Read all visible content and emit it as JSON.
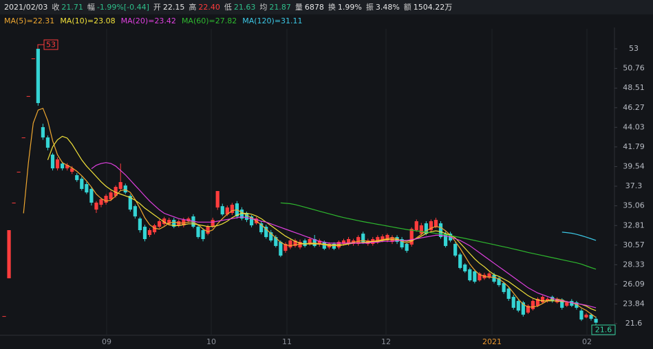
{
  "header": {
    "date": "2021/02/03",
    "items": [
      {
        "label": "收",
        "value": "21.71",
        "color": "#2ebf8a"
      },
      {
        "label": "幅",
        "value": "-1.99%[-0.44]",
        "color": "#2ebf8a"
      },
      {
        "label": "开",
        "value": "22.15",
        "color": "#e6e6e6"
      },
      {
        "label": "高",
        "value": "22.40",
        "color": "#ff3b3b"
      },
      {
        "label": "低",
        "value": "21.63",
        "color": "#2ebf8a"
      },
      {
        "label": "均",
        "value": "21.87",
        "color": "#2ebf8a"
      },
      {
        "label": "量",
        "value": "6878",
        "color": "#e6e6e6"
      },
      {
        "label": "换",
        "value": "1.99%",
        "color": "#e6e6e6"
      },
      {
        "label": "振",
        "value": "3.48%",
        "color": "#e6e6e6"
      },
      {
        "label": "额",
        "value": "1504.22万",
        "color": "#e6e6e6"
      }
    ]
  },
  "chart_data": {
    "type": "candlestick",
    "up_color": "#ff3d3d",
    "down_color": "#35d4d4",
    "ylim": [
      20.27,
      55.28
    ],
    "yticks": [
      53,
      50.76,
      48.51,
      46.27,
      44.03,
      41.79,
      39.54,
      37.3,
      35.06,
      32.81,
      30.57,
      28.33,
      26.09,
      23.84,
      21.6
    ],
    "x_labels": [
      {
        "label": "09",
        "color": "#8e939c"
      },
      {
        "label": "10",
        "color": "#8e939c"
      },
      {
        "label": "11",
        "color": "#8e939c"
      },
      {
        "label": "12",
        "color": "#8e939c"
      },
      {
        "label": "2021",
        "color": "#e8962e"
      },
      {
        "label": "02",
        "color": "#8e939c"
      }
    ],
    "annotations": [
      {
        "value": 53,
        "label": "53",
        "color": "#ff3d3d"
      },
      {
        "value": 21.6,
        "label": "21.6",
        "color": "#35d4a0"
      }
    ],
    "open": [
      22.46,
      26.78,
      35.42,
      38.95,
      42.87,
      47.6,
      51.9,
      53,
      44.05,
      42.87,
      40.91,
      39.34,
      39.89,
      39.34,
      38.95,
      38.56,
      38.16,
      37.54,
      36.99,
      34.63,
      35.18,
      35.42,
      35.81,
      36.2,
      36.99,
      37.38,
      36.2,
      35.02,
      33.61,
      32.67,
      31.73,
      32.04,
      32.67,
      32.98,
      32.98,
      33.45,
      32.83,
      32.83,
      33.3,
      33.85,
      32.67,
      32.28,
      31.88,
      32.67,
      34.87,
      35.02,
      34.08,
      34.24,
      35.34,
      34.63,
      34.24,
      33.85,
      33.06,
      33.06,
      32.67,
      32.04,
      31.49,
      30.94,
      29.92,
      30.31,
      30.47,
      30.31,
      31.1,
      30.71,
      31.26,
      30.63,
      30.94,
      30.31,
      30.71,
      30.31,
      30.71,
      30.71,
      30.71,
      30.71,
      31.88,
      30.71,
      30.71,
      30.94,
      31.1,
      31.1,
      30.94,
      31.49,
      31.26,
      30.71,
      30.63,
      32.28,
      31.88,
      33.06,
      32.28,
      32.67,
      33.06,
      31.88,
      31.88,
      30.71,
      29.5,
      28.35,
      27.8,
      27.57,
      26.55,
      26.78,
      26.86,
      27.17,
      26.78,
      26.23,
      25.6,
      24.66,
      24.19,
      24.03,
      22.86,
      23.25,
      23.64,
      24.03,
      24.19,
      24.66,
      24.03,
      24.35,
      23.64,
      24.19,
      24.03,
      23.09,
      22.31,
      22.62,
      22.15
    ],
    "close": [
      22.46,
      32.28,
      35.42,
      38.95,
      42.87,
      47.6,
      51.9,
      46.8,
      42.87,
      41.7,
      39.34,
      40.36,
      39.34,
      39.73,
      39.34,
      38,
      36.99,
      36.59,
      35.42,
      35.42,
      35.81,
      36.2,
      36.59,
      37.22,
      37.77,
      36.59,
      34.63,
      33.85,
      32.28,
      31.26,
      32.28,
      32.83,
      33.3,
      33.61,
      33.45,
      32.67,
      33.3,
      33.45,
      33.61,
      32.67,
      31.49,
      31.26,
      32.67,
      33.45,
      36.75,
      34.08,
      34.87,
      35.18,
      33.85,
      33.61,
      33.45,
      32.83,
      33.61,
      32.04,
      31.49,
      31.1,
      30.47,
      29.37,
      30.71,
      31.1,
      31.1,
      30.94,
      30.47,
      31.26,
      30.47,
      31.1,
      30.16,
      30.71,
      30.16,
      30.94,
      31.1,
      31.26,
      31.1,
      31.49,
      30.94,
      31.1,
      31.26,
      31.49,
      31.57,
      31.73,
      31.49,
      30.94,
      30.31,
      29.92,
      32.43,
      33.3,
      32.83,
      31.88,
      33.3,
      33.45,
      31.49,
      30.47,
      31.1,
      29.37,
      27.96,
      27.57,
      26.55,
      26.39,
      27.33,
      27.17,
      27.33,
      26.39,
      26,
      25.21,
      24.43,
      23.41,
      23.09,
      22.62,
      23.64,
      24.19,
      24.43,
      24.66,
      24.43,
      24.19,
      24.43,
      23.41,
      24.03,
      23.64,
      23.41,
      22.07,
      22.62,
      22.15,
      21.71
    ],
    "high": [
      22.46,
      32.28,
      35.42,
      38.95,
      42.87,
      47.6,
      51.9,
      53,
      44.44,
      43.1,
      41.1,
      40.6,
      40.1,
      39.95,
      39.6,
      38.8,
      38.4,
      37.8,
      37.2,
      35.6,
      36,
      36.4,
      36.8,
      37.4,
      39.89,
      37.6,
      36.4,
      35.2,
      33.8,
      32.9,
      32.5,
      33,
      33.5,
      33.8,
      33.7,
      33.7,
      33.5,
      33.7,
      33.8,
      34.1,
      32.9,
      32.5,
      32.9,
      33.7,
      36.75,
      35.3,
      35.1,
      35.4,
      35.6,
      34.9,
      34.4,
      34,
      33.8,
      33.3,
      32.9,
      32.3,
      31.7,
      31.1,
      30.9,
      31.3,
      31.3,
      31.2,
      31.3,
      31.5,
      31.73,
      31.3,
      31.1,
      30.9,
      30.9,
      31.1,
      31.3,
      31.5,
      31.3,
      31.7,
      32.1,
      31.3,
      31.5,
      31.7,
      31.8,
      31.9,
      31.7,
      31.7,
      31.5,
      30.9,
      32.6,
      33.5,
      33.1,
      33.3,
      33.5,
      33.7,
      33.3,
      32.1,
      32.1,
      30.9,
      29.7,
      28.5,
      28,
      27.8,
      27.5,
      27.4,
      27.5,
      27.4,
      27,
      26.4,
      25.8,
      24.9,
      24.4,
      24.2,
      23.8,
      24.4,
      24.6,
      24.8,
      24.6,
      24.8,
      24.6,
      24.5,
      24.2,
      24.4,
      24.2,
      23.3,
      22.8,
      22.8,
      22.4
    ],
    "low": [
      22.46,
      26.78,
      35.42,
      38.95,
      42.87,
      47.6,
      51.9,
      46.5,
      42.6,
      41.4,
      39.1,
      39.1,
      39.1,
      39.1,
      38.7,
      37.8,
      36.8,
      36.4,
      35.1,
      34.24,
      34.9,
      35.2,
      35.6,
      36,
      36.8,
      36.4,
      34.4,
      33.6,
      32,
      31,
      31.5,
      31.8,
      32.5,
      32.8,
      32.8,
      32.5,
      32.6,
      32.6,
      33.1,
      32.5,
      31.3,
      31,
      31.7,
      32.5,
      34.6,
      33.9,
      33.9,
      34,
      33.6,
      33.4,
      33.2,
      32.6,
      32.9,
      31.8,
      31.3,
      30.9,
      30.3,
      29.2,
      29.7,
      30.1,
      30.3,
      30.1,
      30.3,
      30.5,
      30.3,
      30.4,
      30,
      30.1,
      30,
      30.1,
      30.5,
      30.5,
      30.5,
      30.5,
      30.7,
      30.5,
      30.5,
      30.7,
      30.9,
      30.9,
      30.7,
      30.7,
      30.1,
      29.7,
      30.4,
      32.1,
      31.7,
      31.7,
      32.1,
      32.5,
      31.3,
      30.3,
      30.9,
      29.2,
      27.8,
      27.4,
      26.4,
      26.2,
      26.4,
      26.6,
      26.7,
      26.2,
      25.8,
      25,
      24.2,
      23.2,
      22.9,
      22.4,
      22.7,
      23.1,
      23.5,
      23.9,
      24,
      24,
      23.9,
      23.2,
      23.5,
      23.5,
      23.2,
      21.9,
      22.2,
      21.95,
      21.63
    ],
    "series": [
      {
        "name": "MA(5)=22.31",
        "color": "#f0a830",
        "values": [
          null,
          null,
          null,
          null,
          34.2,
          40,
          44.5,
          46,
          46.2,
          44.8,
          42.5,
          40.9,
          40,
          39.7,
          39.4,
          39,
          38.5,
          37.9,
          37.2,
          36.4,
          35.9,
          35.6,
          35.7,
          36.2,
          36.8,
          36.9,
          36.6,
          35.8,
          34.8,
          33.7,
          32.9,
          32.5,
          32.4,
          32.7,
          33.1,
          33.2,
          33.1,
          33.1,
          33.2,
          33.2,
          32.9,
          32.4,
          32.1,
          32.3,
          33,
          33.6,
          34.1,
          34.5,
          34.6,
          34.3,
          34,
          33.7,
          33.3,
          32.9,
          32.4,
          31.9,
          31.4,
          30.9,
          30.6,
          30.5,
          30.6,
          30.7,
          30.7,
          30.8,
          30.8,
          30.7,
          30.6,
          30.5,
          30.5,
          30.5,
          30.6,
          30.8,
          30.9,
          31,
          31.1,
          31,
          31,
          31.1,
          31.2,
          31.3,
          31.4,
          31.3,
          31,
          30.8,
          31,
          31.4,
          31.8,
          32.2,
          32.5,
          32.7,
          32.6,
          32.2,
          31.7,
          31,
          30.2,
          29.3,
          28.4,
          27.7,
          27.2,
          27,
          26.9,
          26.9,
          26.7,
          26.3,
          25.8,
          25.1,
          24.4,
          23.8,
          23.5,
          23.5,
          23.6,
          23.9,
          24.2,
          24.4,
          24.4,
          24.3,
          24.1,
          24,
          23.8,
          23.4,
          23.1,
          22.7,
          22.31
        ]
      },
      {
        "name": "MA(10)=23.08",
        "color": "#f2e23a",
        "values": [
          null,
          null,
          null,
          null,
          null,
          null,
          null,
          null,
          null,
          40.3,
          41.8,
          42.6,
          43,
          42.8,
          42.1,
          41.2,
          40.3,
          39.6,
          39,
          38.4,
          37.8,
          37.3,
          36.9,
          36.6,
          36.4,
          36.2,
          36,
          35.7,
          35.3,
          34.8,
          34.4,
          34,
          33.6,
          33.2,
          32.9,
          32.8,
          32.8,
          32.9,
          33,
          33,
          32.9,
          32.8,
          32.7,
          32.7,
          32.8,
          33,
          33.3,
          33.7,
          34,
          34.2,
          34.2,
          34.1,
          33.9,
          33.6,
          33.2,
          32.8,
          32.4,
          32,
          31.6,
          31.3,
          31,
          30.8,
          30.7,
          30.7,
          30.7,
          30.7,
          30.7,
          30.6,
          30.6,
          30.6,
          30.6,
          30.7,
          30.8,
          30.8,
          30.9,
          30.9,
          31,
          31,
          31.1,
          31.2,
          31.2,
          31.2,
          31.1,
          31,
          31.1,
          31.3,
          31.6,
          31.9,
          32.1,
          32.2,
          32.1,
          31.9,
          31.7,
          31.4,
          30.8,
          30.2,
          29.6,
          29,
          28.5,
          28.1,
          27.6,
          27.2,
          27,
          26.7,
          26.4,
          26,
          25.6,
          25.2,
          24.8,
          24.5,
          24.3,
          24.2,
          24.2,
          24.2,
          24.2,
          24.1,
          24.1,
          24,
          23.9,
          23.8,
          23.6,
          23.3,
          23.08
        ]
      },
      {
        "name": "MA(20)=23.42",
        "color": "#e040e0",
        "values": [
          null,
          null,
          null,
          null,
          null,
          null,
          null,
          null,
          null,
          null,
          null,
          null,
          null,
          null,
          null,
          null,
          null,
          null,
          39.3,
          39.7,
          39.9,
          40,
          39.9,
          39.6,
          39.1,
          38.6,
          38,
          37.4,
          36.8,
          36.2,
          35.6,
          35.1,
          34.6,
          34.2,
          34,
          33.8,
          33.6,
          33.5,
          33.4,
          33.3,
          33.2,
          33.2,
          33.2,
          33.2,
          33.3,
          33.4,
          33.5,
          33.6,
          33.7,
          33.8,
          33.7,
          33.6,
          33.5,
          33.3,
          33.2,
          33,
          32.8,
          32.6,
          32.4,
          32.2,
          32,
          31.8,
          31.6,
          31.4,
          31.2,
          31,
          30.9,
          30.8,
          30.8,
          30.8,
          30.8,
          30.8,
          30.8,
          30.8,
          30.8,
          30.8,
          30.9,
          30.9,
          31,
          31,
          31,
          31.1,
          31.1,
          31.1,
          31.2,
          31.3,
          31.4,
          31.5,
          31.6,
          31.7,
          31.7,
          31.6,
          31.5,
          31.3,
          31.1,
          30.8,
          30.5,
          30.1,
          29.7,
          29.3,
          28.9,
          28.5,
          28.1,
          27.7,
          27.3,
          26.9,
          26.5,
          26.1,
          25.7,
          25.4,
          25.1,
          24.9,
          24.7,
          24.5,
          24.3,
          24.2,
          24.1,
          24,
          23.9,
          23.8,
          23.7,
          23.55,
          23.42
        ]
      },
      {
        "name": "MA(60)=27.82",
        "color": "#2eb82e",
        "values": [
          null,
          null,
          null,
          null,
          null,
          null,
          null,
          null,
          null,
          null,
          null,
          null,
          null,
          null,
          null,
          null,
          null,
          null,
          null,
          null,
          null,
          null,
          null,
          null,
          null,
          null,
          null,
          null,
          null,
          null,
          null,
          null,
          null,
          null,
          null,
          null,
          null,
          null,
          null,
          null,
          null,
          null,
          null,
          null,
          null,
          null,
          null,
          null,
          null,
          null,
          null,
          null,
          null,
          null,
          null,
          null,
          null,
          35.4,
          35.35,
          35.3,
          35.2,
          35.05,
          34.9,
          34.75,
          34.6,
          34.45,
          34.3,
          34.15,
          34,
          33.85,
          33.72,
          33.6,
          33.48,
          33.36,
          33.25,
          33.15,
          33.05,
          32.95,
          32.85,
          32.75,
          32.65,
          32.55,
          32.45,
          32.35,
          32.27,
          32.2,
          32.13,
          32.06,
          31.99,
          31.92,
          31.85,
          31.76,
          31.67,
          31.56,
          31.45,
          31.34,
          31.22,
          31.1,
          30.98,
          30.86,
          30.74,
          30.62,
          30.5,
          30.38,
          30.26,
          30.13,
          30,
          29.87,
          29.74,
          29.62,
          29.5,
          29.38,
          29.26,
          29.14,
          29.02,
          28.9,
          28.78,
          28.66,
          28.54,
          28.4,
          28.2,
          28,
          27.82
        ]
      },
      {
        "name": "MA(120)=31.11",
        "color": "#3cc8e6",
        "values": [
          null,
          null,
          null,
          null,
          null,
          null,
          null,
          null,
          null,
          null,
          null,
          null,
          null,
          null,
          null,
          null,
          null,
          null,
          null,
          null,
          null,
          null,
          null,
          null,
          null,
          null,
          null,
          null,
          null,
          null,
          null,
          null,
          null,
          null,
          null,
          null,
          null,
          null,
          null,
          null,
          null,
          null,
          null,
          null,
          null,
          null,
          null,
          null,
          null,
          null,
          null,
          null,
          null,
          null,
          null,
          null,
          null,
          null,
          null,
          null,
          null,
          null,
          null,
          null,
          null,
          null,
          null,
          null,
          null,
          null,
          null,
          null,
          null,
          null,
          null,
          null,
          null,
          null,
          null,
          null,
          null,
          null,
          null,
          null,
          null,
          null,
          null,
          null,
          null,
          null,
          null,
          null,
          null,
          null,
          null,
          null,
          null,
          null,
          null,
          null,
          null,
          null,
          null,
          null,
          null,
          null,
          null,
          null,
          null,
          null,
          null,
          null,
          null,
          null,
          null,
          32.05,
          32,
          31.93,
          31.8,
          31.65,
          31.48,
          31.3,
          31.11
        ]
      }
    ]
  }
}
